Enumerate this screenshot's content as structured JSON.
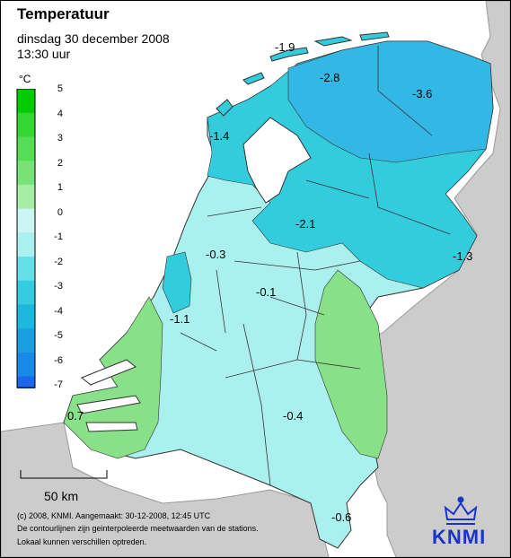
{
  "title": "Temperatuur",
  "date": "dinsdag 30 december 2008",
  "time": "13:30 uur",
  "unit": "°C",
  "legend": {
    "ticks": [
      "5",
      "4",
      "3",
      "2",
      "1",
      "0",
      "-1",
      "-2",
      "-3",
      "-4",
      "-5",
      "-6",
      "-7"
    ],
    "colors": [
      "#00cc00",
      "#33d633",
      "#55dd55",
      "#77e277",
      "#a6eea6",
      "#ccf5f5",
      "#aaf0f0",
      "#66e0e8",
      "#33cce0",
      "#1ab8dd",
      "#1aa0e0",
      "#1a88e6",
      "#1a66ee"
    ]
  },
  "scale_bar": {
    "label": "50 km"
  },
  "footer": {
    "line1": "(c) 2008, KNMI. Aangemaakt: 30-12-2008, 12:45 UTC",
    "line2": "De contourlijnen zijn geinterpoleerde meetwaarden van de stations.",
    "line3": "Lokaal kunnen verschillen optreden."
  },
  "logo": {
    "text": "KNMI"
  },
  "values": [
    {
      "id": "v1",
      "text": "-1.9"
    },
    {
      "id": "v2",
      "text": "-2.8"
    },
    {
      "id": "v3",
      "text": "-3.6"
    },
    {
      "id": "v4",
      "text": "-1.4"
    },
    {
      "id": "v5",
      "text": "-2.1"
    },
    {
      "id": "v6",
      "text": "-1.3"
    },
    {
      "id": "v7",
      "text": "-0.3"
    },
    {
      "id": "v8",
      "text": "-0.1"
    },
    {
      "id": "v9",
      "text": "-1.1"
    },
    {
      "id": "v10",
      "text": "0.7"
    },
    {
      "id": "v11",
      "text": "-0.4"
    },
    {
      "id": "v12",
      "text": "-0.6"
    }
  ],
  "colors": {
    "sea": "#ffffff",
    "land_outside": "#cccccc",
    "band_m3": "#33b8e6",
    "band_m2": "#33ccdd",
    "band_m1": "#77e2e8",
    "band_0": "#aaf0ee",
    "band_p1": "#88e088",
    "lake": "#ffffff",
    "logo": "#1a33cc"
  }
}
